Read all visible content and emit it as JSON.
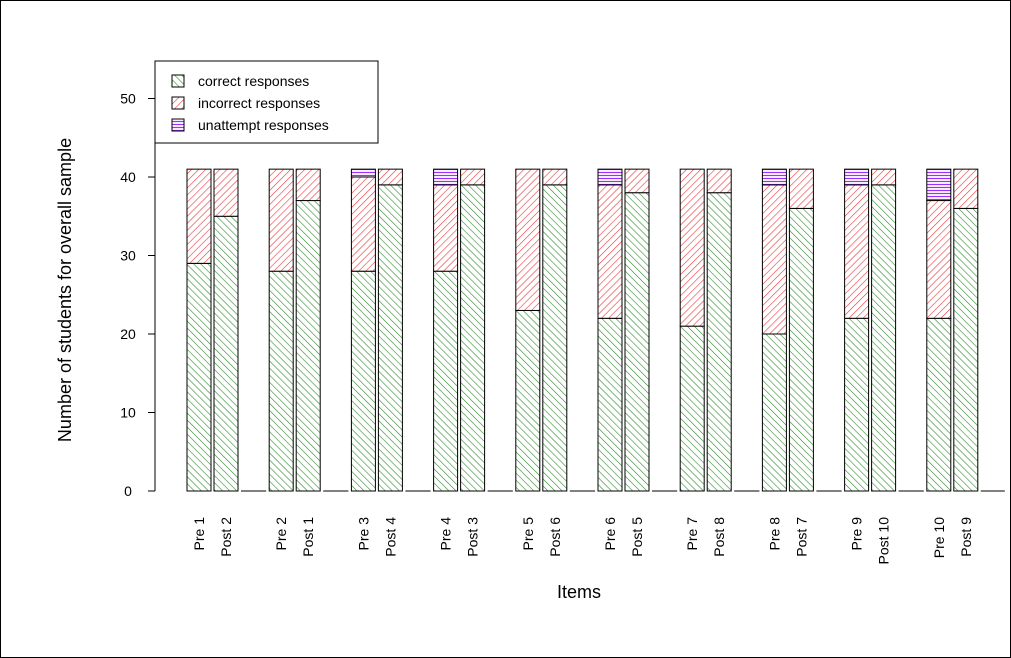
{
  "chart_data": {
    "type": "bar",
    "stacked": true,
    "xlabel": "Items",
    "ylabel": "Number of students for overall sample",
    "ylim": [
      0,
      55
    ],
    "yticks": [
      0,
      10,
      20,
      30,
      40,
      50
    ],
    "grid": false,
    "legend_position": "top-left",
    "categories": [
      "Pre 1",
      "Post 2",
      "Pre 2",
      "Post 1",
      "Pre 3",
      "Post 4",
      "Pre 4",
      "Post 3",
      "Pre 5",
      "Post 6",
      "Pre 6",
      "Post 5",
      "Pre 7",
      "Post 8",
      "Pre 8",
      "Post 7",
      "Pre 9",
      "Post 10",
      "Pre 10",
      "Post 9"
    ],
    "series": [
      {
        "name": "correct responses",
        "color": "#2e8b2e",
        "pattern": "diagonal-hatch",
        "values": [
          29,
          35,
          28,
          37,
          28,
          39,
          28,
          39,
          23,
          39,
          22,
          38,
          21,
          38,
          20,
          36,
          22,
          39,
          22,
          36
        ]
      },
      {
        "name": "incorrect responses",
        "color": "#e8383c",
        "pattern": "diagonal-hatch",
        "values": [
          12,
          6,
          13,
          4,
          12,
          2,
          11,
          2,
          18,
          2,
          17,
          3,
          20,
          3,
          19,
          5,
          17,
          2,
          15,
          5
        ]
      },
      {
        "name": "unattempt responses",
        "color": "#9b30ff",
        "pattern": "horizontal-lines",
        "values": [
          0,
          0,
          0,
          0,
          1,
          0,
          2,
          0,
          0,
          0,
          2,
          0,
          0,
          0,
          2,
          0,
          2,
          0,
          4,
          0
        ]
      }
    ]
  }
}
